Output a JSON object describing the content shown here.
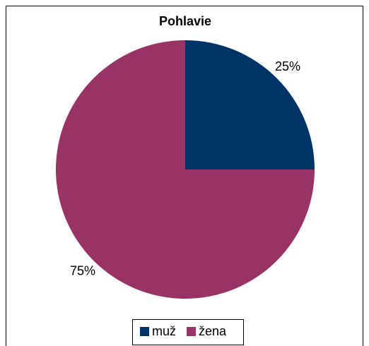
{
  "chart_data": {
    "type": "pie",
    "title": "Pohlavie",
    "categories": [
      "muž",
      "žena"
    ],
    "values": [
      25,
      75
    ],
    "value_labels": [
      "25%",
      "75%"
    ],
    "colors": [
      "#003366",
      "#993366"
    ],
    "legend": "bottom"
  }
}
